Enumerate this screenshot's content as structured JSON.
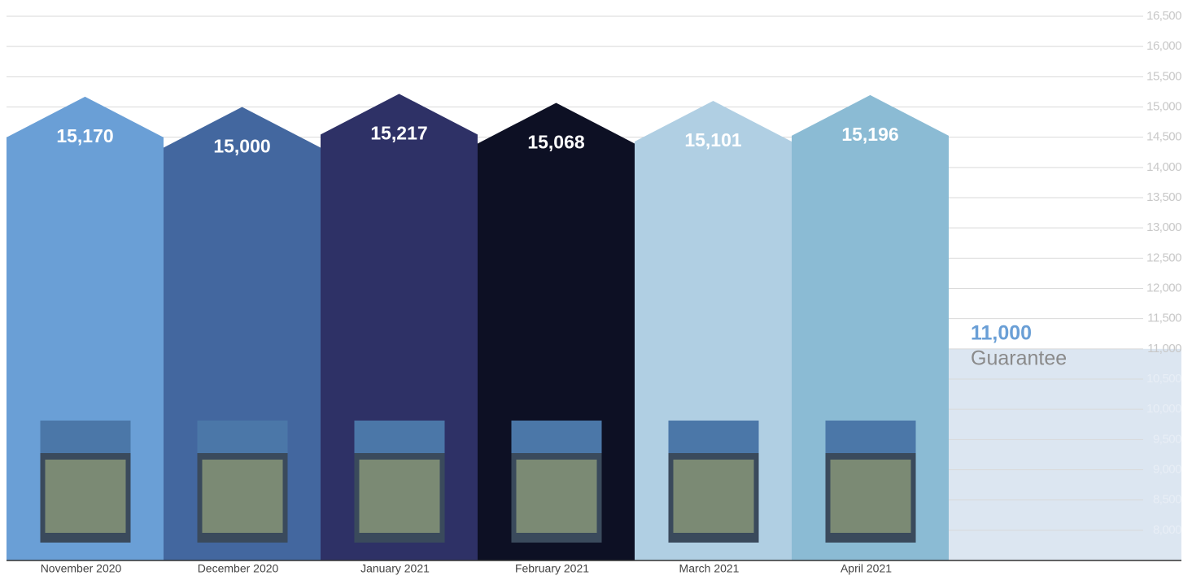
{
  "chart_data": {
    "type": "bar",
    "categories": [
      "November 2020",
      "December 2020",
      "January 2021",
      "February 2021",
      "March 2021",
      "April 2021"
    ],
    "values": [
      15170,
      15000,
      15217,
      15068,
      15101,
      15196
    ],
    "value_labels": [
      "15,170",
      "15,000",
      "15,217",
      "15,068",
      "15,101",
      "15,196"
    ],
    "colors": [
      "#6a9fd6",
      "#43679f",
      "#2e3166",
      "#0d1024",
      "#b0cfe3",
      "#8bbbd4"
    ],
    "ylim": [
      7500,
      16500
    ],
    "yticks": [
      {
        "value": 8000,
        "label": "8,000"
      },
      {
        "value": 8500,
        "label": "8,500"
      },
      {
        "value": 9000,
        "label": "9,000"
      },
      {
        "value": 9500,
        "label": "9,500"
      },
      {
        "value": 10000,
        "label": "10,000"
      },
      {
        "value": 10500,
        "label": "10,500"
      },
      {
        "value": 11000,
        "label": "11,000"
      },
      {
        "value": 11500,
        "label": "11,500"
      },
      {
        "value": 12000,
        "label": "12,000"
      },
      {
        "value": 12500,
        "label": "12,500"
      },
      {
        "value": 13000,
        "label": "13,000"
      },
      {
        "value": 13500,
        "label": "13,500"
      },
      {
        "value": 14000,
        "label": "14,000"
      },
      {
        "value": 14500,
        "label": "14,500"
      },
      {
        "value": 15000,
        "label": "15,000"
      },
      {
        "value": 15500,
        "label": "15,500"
      },
      {
        "value": 16000,
        "label": "16,000"
      },
      {
        "value": 16500,
        "label": "16,500"
      }
    ],
    "grid": true,
    "guarantee": {
      "value": 11000,
      "value_label": "11,000",
      "text": "Guarantee",
      "color": "#dce6f1"
    }
  }
}
